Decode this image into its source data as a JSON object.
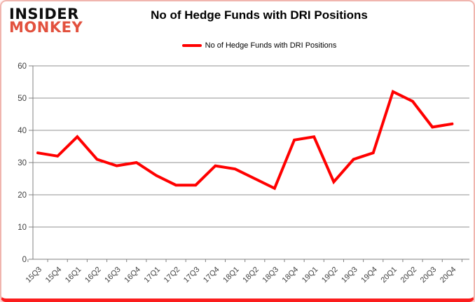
{
  "logo": {
    "line1": "INSIDER",
    "line2": "MONKEY"
  },
  "header": {
    "title": "No of Hedge Funds with DRI Positions"
  },
  "legend": {
    "label": "No of Hedge Funds with DRI Positions"
  },
  "colors": {
    "line": "#ff0000",
    "grid": "#909090",
    "axis": "#808080",
    "label": "#3f3f3f",
    "logo-black": "#0d0d0d",
    "logo-red": "#e2513e",
    "border-pink": "#f0b5ae",
    "border-red": "#fb1d1d"
  },
  "chart_data": {
    "type": "line",
    "title": "No of Hedge Funds with DRI Positions",
    "categories": [
      "15Q3",
      "15Q4",
      "16Q1",
      "16Q2",
      "16Q3",
      "16Q4",
      "17Q1",
      "17Q2",
      "17Q3",
      "17Q4",
      "18Q1",
      "18Q2",
      "18Q3",
      "18Q4",
      "19Q1",
      "19Q2",
      "19Q3",
      "19Q4",
      "20Q1",
      "20Q2",
      "20Q3",
      "20Q4"
    ],
    "series": [
      {
        "name": "No of Hedge Funds with DRI Positions",
        "color": "#ff0000",
        "values": [
          33,
          32,
          38,
          31,
          29,
          30,
          26,
          23,
          23,
          29,
          28,
          25,
          22,
          37,
          38,
          24,
          31,
          33,
          52,
          49,
          41,
          42
        ]
      }
    ],
    "xlabel": "",
    "ylabel": "",
    "ylim": [
      0,
      60
    ],
    "ytick_interval": 10,
    "grid": true,
    "legend_position": "top-center",
    "x_tick_label_rotation_deg": -45
  }
}
